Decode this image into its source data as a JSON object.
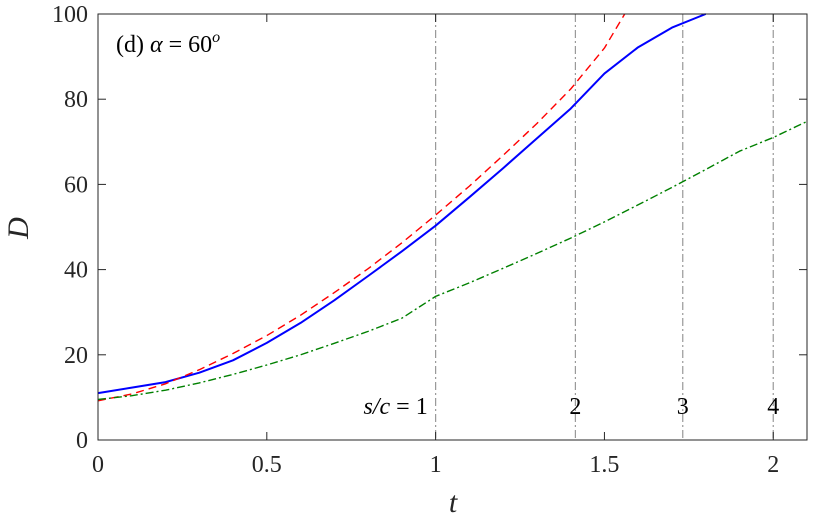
{
  "chart_data": {
    "type": "line",
    "xlabel": "t",
    "ylabel": "D",
    "xlim": [
      0,
      2.1
    ],
    "ylim": [
      0,
      100
    ],
    "xticks": [
      0,
      0.5,
      1,
      1.5,
      2
    ],
    "yticks": [
      0,
      20,
      40,
      60,
      80,
      100
    ],
    "xtick_labels": [
      "0",
      "0.5",
      "1",
      "1.5",
      "2"
    ],
    "ytick_labels": [
      "0",
      "20",
      "40",
      "60",
      "80",
      "100"
    ],
    "grid": false,
    "panel_label": {
      "prefix": "(d)",
      "greek": "α",
      "equals": " = 60",
      "sup": "o"
    },
    "series": [
      {
        "color": "#0000ff",
        "style": "solid",
        "x": [
          0,
          0.1,
          0.2,
          0.3,
          0.4,
          0.5,
          0.6,
          0.7,
          0.8,
          0.9,
          1.0,
          1.1,
          1.2,
          1.3,
          1.4,
          1.5,
          1.6,
          1.7,
          1.8
        ],
        "y": [
          11,
          12.3,
          13.6,
          15.8,
          18.7,
          22.8,
          27.5,
          32.8,
          38.5,
          44.3,
          50.3,
          57.0,
          63.8,
          70.8,
          77.8,
          86.0,
          92.2,
          96.8,
          100
        ]
      },
      {
        "color": "#ff0000",
        "style": "dashed",
        "x": [
          0,
          0.1,
          0.2,
          0.3,
          0.4,
          0.5,
          0.6,
          0.7,
          0.8,
          0.9,
          1.0,
          1.1,
          1.2,
          1.3,
          1.4,
          1.5,
          1.56
        ],
        "y": [
          9.2,
          10.8,
          13.2,
          16.5,
          20.3,
          24.5,
          29.3,
          34.6,
          40.2,
          46.3,
          52.8,
          59.6,
          66.8,
          74.3,
          82.4,
          92.0,
          100
        ]
      },
      {
        "color": "#008000",
        "style": "dashdot",
        "x": [
          0,
          0.1,
          0.2,
          0.3,
          0.4,
          0.5,
          0.6,
          0.7,
          0.8,
          0.9,
          1.0,
          1.1,
          1.2,
          1.3,
          1.4,
          1.5,
          1.6,
          1.7,
          1.8,
          1.9,
          2.0,
          2.1
        ],
        "y": [
          9.5,
          10.4,
          11.7,
          13.4,
          15.4,
          17.6,
          20.0,
          22.7,
          25.5,
          28.6,
          33.7,
          36.9,
          40.3,
          43.8,
          47.4,
          51.2,
          55.2,
          59.3,
          63.5,
          67.8,
          71.0,
          74.8
        ]
      }
    ],
    "vlines": [
      {
        "x": 1.0,
        "label": "s/c = 1"
      },
      {
        "x": 1.414,
        "label": "2"
      },
      {
        "x": 1.732,
        "label": "3"
      },
      {
        "x": 2.0,
        "label": "4"
      }
    ],
    "vline_color": "#999999"
  }
}
